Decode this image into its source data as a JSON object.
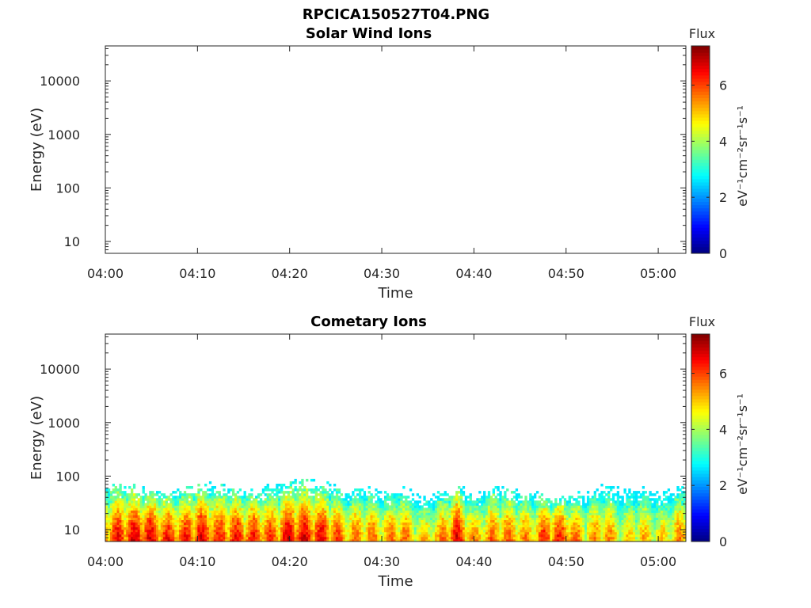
{
  "figure": {
    "title": "RPCICA150527T04.PNG"
  },
  "chart_data": [
    {
      "type": "heatmap",
      "title": "Solar Wind Ions",
      "xlabel": "Time",
      "ylabel": "Energy (eV)",
      "x_ticks": [
        "04:00",
        "04:10",
        "04:20",
        "04:30",
        "04:40",
        "04:50",
        "05:00"
      ],
      "xlim": [
        "04:00",
        "05:03"
      ],
      "y_scale": "log",
      "y_ticks": [
        10,
        100,
        1000,
        10000
      ],
      "ylim": [
        6,
        45000
      ],
      "colorbar": {
        "title": "Flux",
        "unit": "eV⁻¹cm⁻²sr⁻¹s⁻¹",
        "ticks": [
          0,
          2,
          4,
          6
        ],
        "range": [
          0,
          7.4
        ],
        "colormap": "jet"
      },
      "flux_profile": [],
      "note": ""
    },
    {
      "type": "heatmap",
      "title": "Cometary Ions",
      "xlabel": "Time",
      "ylabel": "Energy (eV)",
      "x_ticks": [
        "04:00",
        "04:10",
        "04:20",
        "04:30",
        "04:40",
        "04:50",
        "05:00"
      ],
      "xlim": [
        "04:00",
        "05:03"
      ],
      "y_scale": "log",
      "y_ticks": [
        10,
        100,
        1000,
        10000
      ],
      "ylim": [
        6,
        45000
      ],
      "colorbar": {
        "title": "Flux",
        "unit": "eV⁻¹cm⁻²sr⁻¹s⁻¹",
        "ticks": [
          0,
          2,
          4,
          6
        ],
        "range": [
          0,
          7.4
        ],
        "colormap": "jet"
      },
      "energy_range_eV": [
        6,
        80
      ],
      "flux_profile": [
        {
          "time": "04:00",
          "peak_flux": 6.2,
          "top_eV": 70
        },
        {
          "time": "04:02",
          "peak_flux": 6.8,
          "top_eV": 60
        },
        {
          "time": "04:04",
          "peak_flux": 7.0,
          "top_eV": 55
        },
        {
          "time": "04:06",
          "peak_flux": 6.6,
          "top_eV": 50
        },
        {
          "time": "04:08",
          "peak_flux": 6.3,
          "top_eV": 50
        },
        {
          "time": "04:10",
          "peak_flux": 6.9,
          "top_eV": 65
        },
        {
          "time": "04:12",
          "peak_flux": 6.4,
          "top_eV": 60
        },
        {
          "time": "04:14",
          "peak_flux": 6.6,
          "top_eV": 55
        },
        {
          "time": "04:16",
          "peak_flux": 6.5,
          "top_eV": 50
        },
        {
          "time": "04:18",
          "peak_flux": 6.2,
          "top_eV": 60
        },
        {
          "time": "04:20",
          "peak_flux": 7.0,
          "top_eV": 70
        },
        {
          "time": "04:22",
          "peak_flux": 6.8,
          "top_eV": 70
        },
        {
          "time": "04:24",
          "peak_flux": 6.6,
          "top_eV": 65
        },
        {
          "time": "04:26",
          "peak_flux": 5.8,
          "top_eV": 45
        },
        {
          "time": "04:28",
          "peak_flux": 6.0,
          "top_eV": 55
        },
        {
          "time": "04:30",
          "peak_flux": 5.6,
          "top_eV": 45
        },
        {
          "time": "04:32",
          "peak_flux": 6.1,
          "top_eV": 55
        },
        {
          "time": "04:34",
          "peak_flux": 5.2,
          "top_eV": 35
        },
        {
          "time": "04:36",
          "peak_flux": 5.5,
          "top_eV": 45
        },
        {
          "time": "04:38",
          "peak_flux": 6.9,
          "top_eV": 60
        },
        {
          "time": "04:40",
          "peak_flux": 5.5,
          "top_eV": 40
        },
        {
          "time": "04:42",
          "peak_flux": 5.9,
          "top_eV": 60
        },
        {
          "time": "04:44",
          "peak_flux": 6.0,
          "top_eV": 50
        },
        {
          "time": "04:46",
          "peak_flux": 5.6,
          "top_eV": 45
        },
        {
          "time": "04:48",
          "peak_flux": 6.6,
          "top_eV": 40
        },
        {
          "time": "04:50",
          "peak_flux": 6.4,
          "top_eV": 40
        },
        {
          "time": "04:52",
          "peak_flux": 5.3,
          "top_eV": 45
        },
        {
          "time": "04:54",
          "peak_flux": 5.9,
          "top_eV": 60
        },
        {
          "time": "04:56",
          "peak_flux": 5.0,
          "top_eV": 45
        },
        {
          "time": "04:58",
          "peak_flux": 5.4,
          "top_eV": 55
        },
        {
          "time": "05:00",
          "peak_flux": 5.0,
          "top_eV": 45
        },
        {
          "time": "05:02",
          "peak_flux": 5.6,
          "top_eV": 60
        }
      ]
    }
  ]
}
